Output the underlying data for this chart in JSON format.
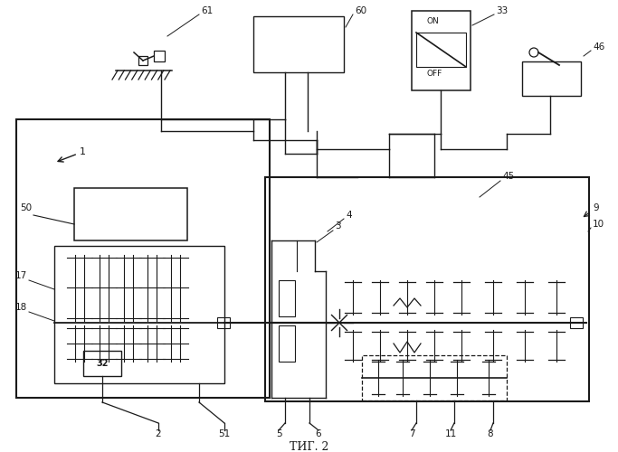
{
  "bg_color": "#ffffff",
  "lc": "#1a1a1a",
  "fig_width": 6.83,
  "fig_height": 5.0,
  "dpi": 100,
  "caption": "ΤИГ. 2"
}
